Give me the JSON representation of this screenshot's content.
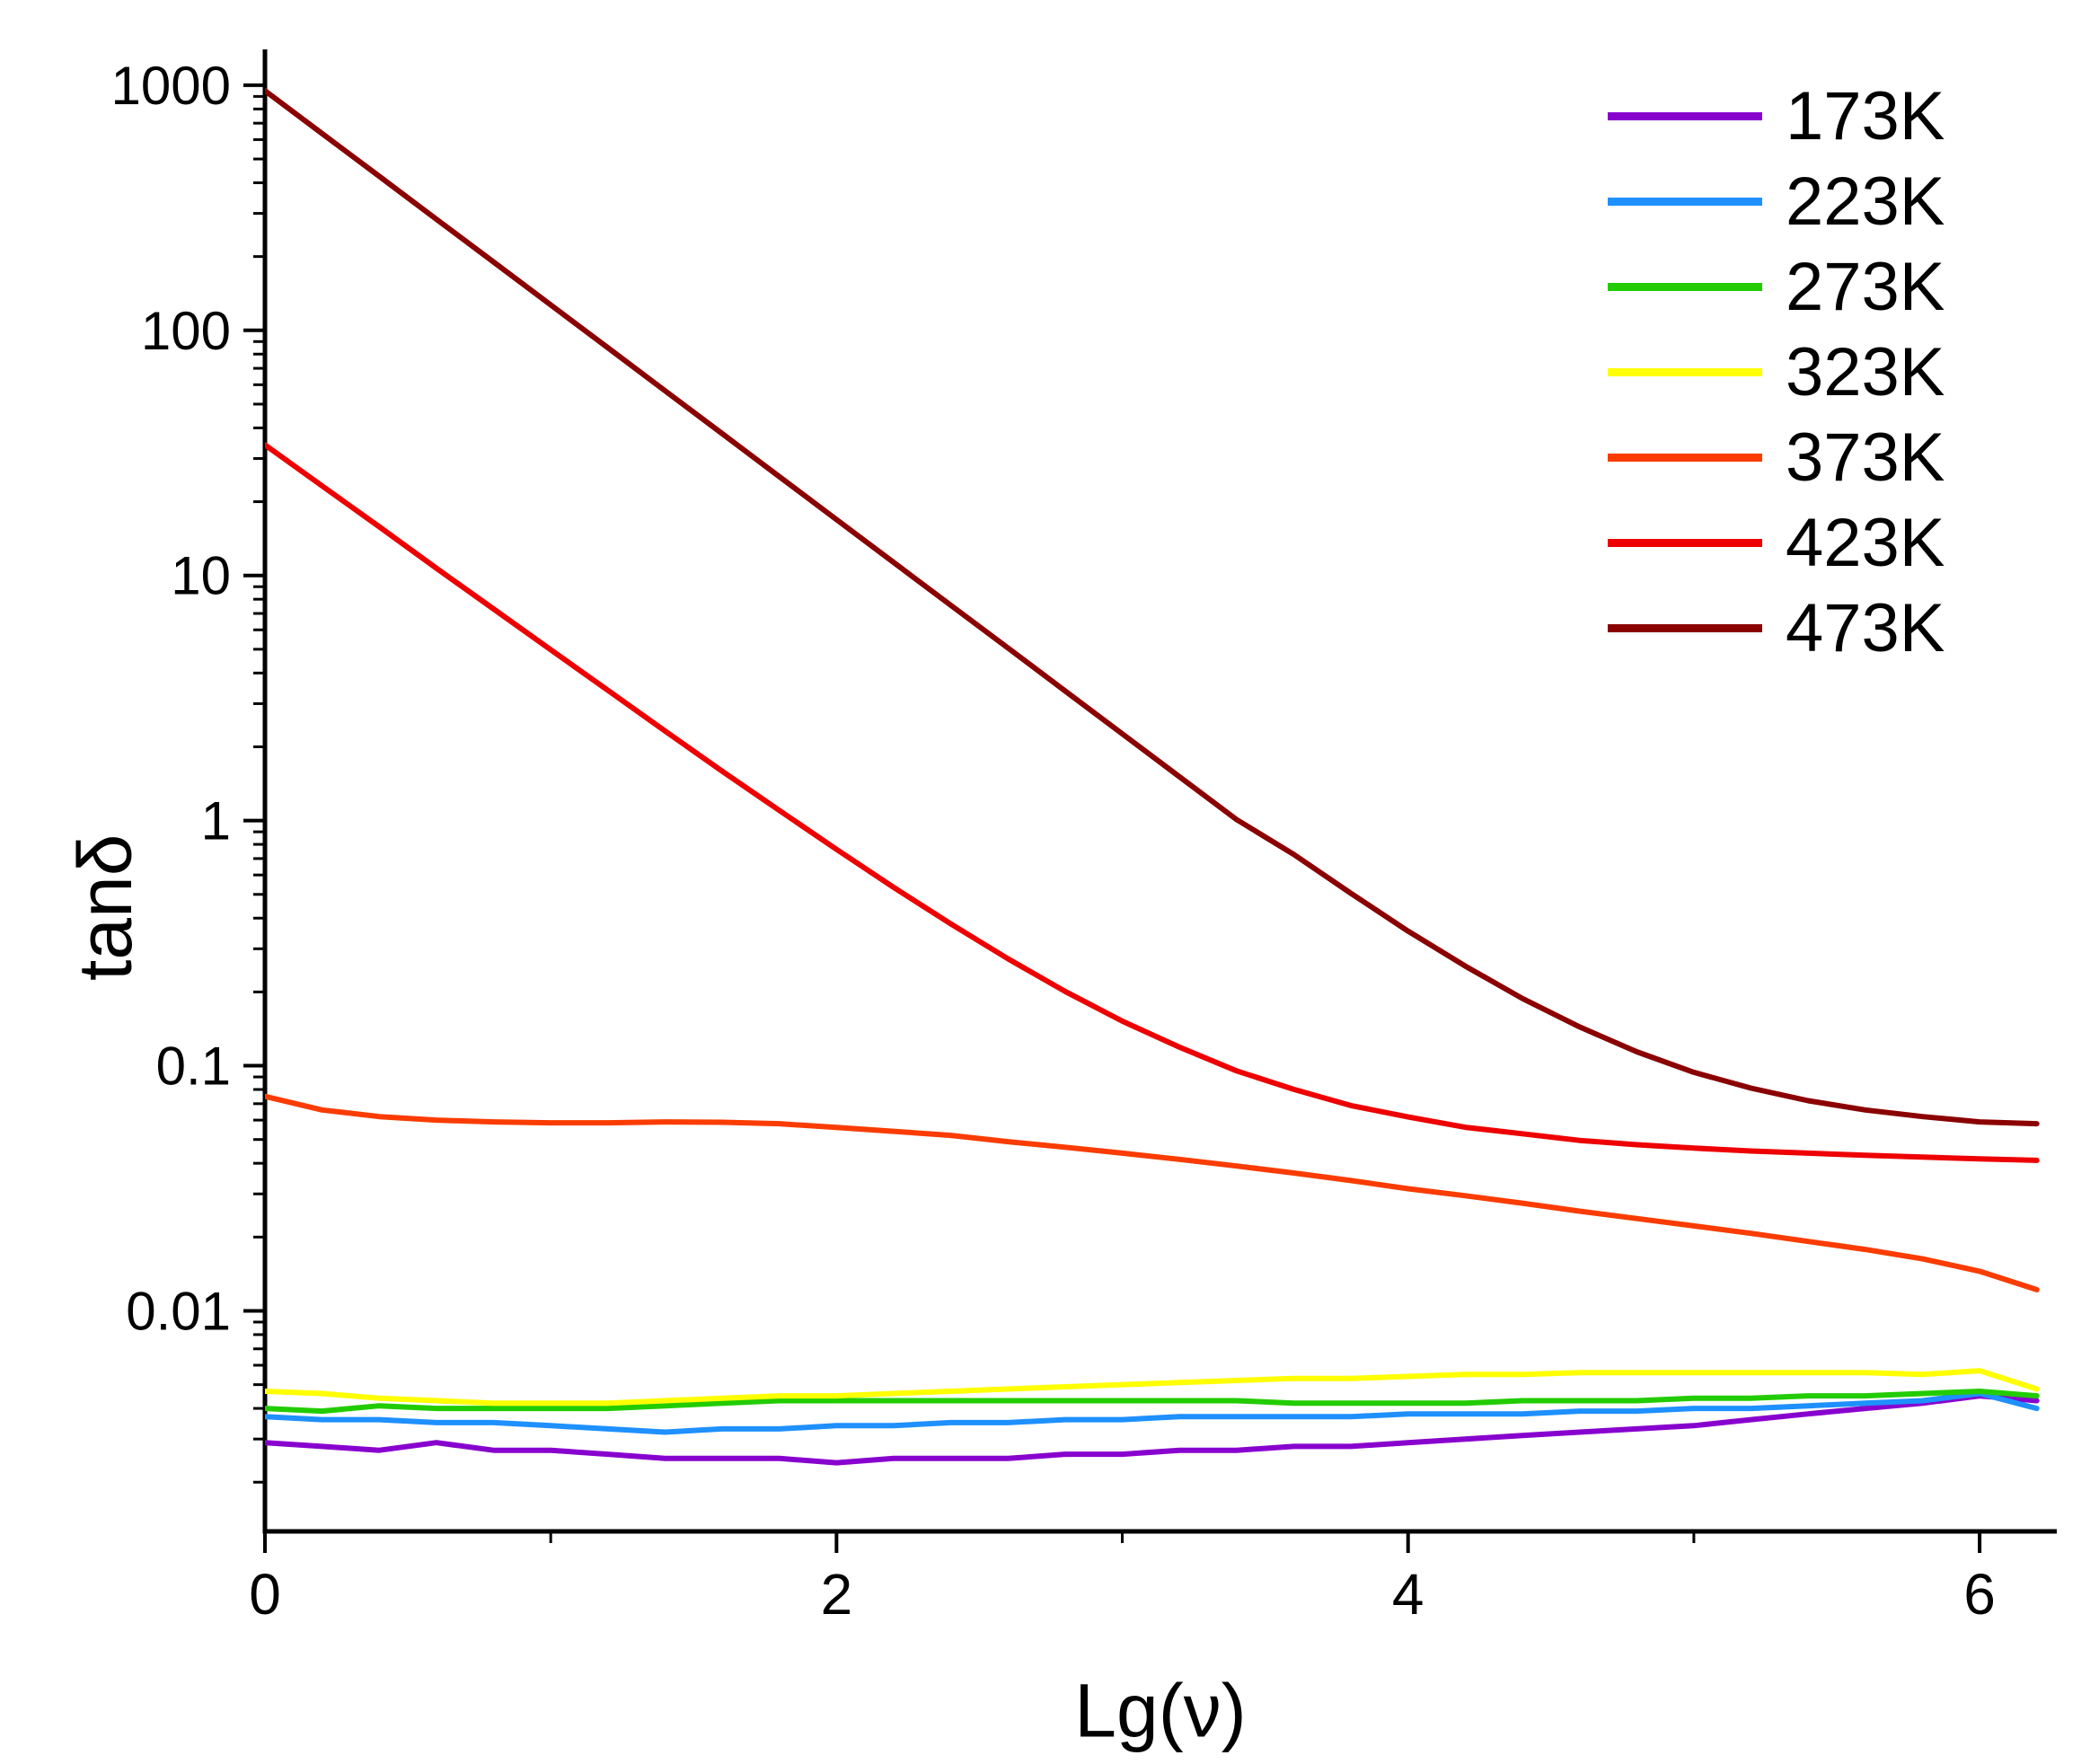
{
  "figure": {
    "background": "#ffffff"
  },
  "chart_data": {
    "type": "line",
    "title": "",
    "xlabel": "Lg(ν)",
    "ylabel": "tanδ",
    "grid": false,
    "legend_position": "top-right",
    "x_axis": {
      "scale": "linear",
      "min": 0,
      "max": 6.27,
      "major_ticks": [
        {
          "value": 0,
          "label": "0"
        },
        {
          "value": 2,
          "label": "2"
        },
        {
          "value": 4,
          "label": "4"
        },
        {
          "value": 6,
          "label": "6"
        }
      ],
      "minor_ticks": [
        1,
        3,
        5
      ]
    },
    "y_axis": {
      "scale": "log",
      "min": 0.00126,
      "max": 1400,
      "major_ticks": [
        {
          "value": 0.01,
          "label": "0.01"
        },
        {
          "value": 0.1,
          "label": "0.1"
        },
        {
          "value": 1,
          "label": "1"
        },
        {
          "value": 10,
          "label": "10"
        },
        {
          "value": 100,
          "label": "100"
        },
        {
          "value": 1000,
          "label": "1000"
        }
      ]
    },
    "x": [
      0,
      0.2,
      0.4,
      0.6,
      0.8,
      1.0,
      1.2,
      1.4,
      1.6,
      1.8,
      2.0,
      2.2,
      2.4,
      2.6,
      2.8,
      3.0,
      3.2,
      3.4,
      3.6,
      3.8,
      4.0,
      4.2,
      4.4,
      4.6,
      4.8,
      5.0,
      5.2,
      5.4,
      5.6,
      5.8,
      6.0,
      6.2
    ],
    "series": [
      {
        "name": "173K",
        "color": "#8802ce",
        "values": [
          0.0029,
          0.0028,
          0.0027,
          0.0029,
          0.0027,
          0.0027,
          0.0026,
          0.0025,
          0.0025,
          0.0025,
          0.0024,
          0.0025,
          0.0025,
          0.0025,
          0.0026,
          0.0026,
          0.0027,
          0.0027,
          0.0028,
          0.0028,
          0.0029,
          0.003,
          0.0031,
          0.0032,
          0.0033,
          0.0034,
          0.0036,
          0.0038,
          0.004,
          0.0042,
          0.0045,
          0.0043
        ]
      },
      {
        "name": "223K",
        "color": "#1e90ff",
        "values": [
          0.0037,
          0.0036,
          0.0036,
          0.0035,
          0.0035,
          0.0034,
          0.0033,
          0.0032,
          0.0033,
          0.0033,
          0.0034,
          0.0034,
          0.0035,
          0.0035,
          0.0036,
          0.0036,
          0.0037,
          0.0037,
          0.0037,
          0.0037,
          0.0038,
          0.0038,
          0.0038,
          0.0039,
          0.0039,
          0.004,
          0.004,
          0.0041,
          0.0042,
          0.0043,
          0.0046,
          0.004
        ]
      },
      {
        "name": "273K",
        "color": "#22cc00",
        "values": [
          0.004,
          0.0039,
          0.0041,
          0.004,
          0.004,
          0.004,
          0.004,
          0.0041,
          0.0042,
          0.0043,
          0.0043,
          0.0043,
          0.0043,
          0.0043,
          0.0043,
          0.0043,
          0.0043,
          0.0043,
          0.0042,
          0.0042,
          0.0042,
          0.0042,
          0.0043,
          0.0043,
          0.0043,
          0.0044,
          0.0044,
          0.0045,
          0.0045,
          0.0046,
          0.0047,
          0.0045
        ]
      },
      {
        "name": "323K",
        "color": "#ffff00",
        "values": [
          0.0047,
          0.0046,
          0.0044,
          0.0043,
          0.0042,
          0.0042,
          0.0042,
          0.0043,
          0.0044,
          0.0045,
          0.0045,
          0.0046,
          0.0047,
          0.0048,
          0.0049,
          0.005,
          0.0051,
          0.0052,
          0.0053,
          0.0053,
          0.0054,
          0.0055,
          0.0055,
          0.0056,
          0.0056,
          0.0056,
          0.0056,
          0.0056,
          0.0056,
          0.0055,
          0.0057,
          0.0048
        ]
      },
      {
        "name": "373K",
        "color": "#fa3c00",
        "values": [
          0.075,
          0.066,
          0.062,
          0.06,
          0.059,
          0.0585,
          0.0585,
          0.059,
          0.0588,
          0.058,
          0.056,
          0.054,
          0.052,
          0.049,
          0.0465,
          0.044,
          0.0415,
          0.039,
          0.0365,
          0.034,
          0.0315,
          0.0295,
          0.0275,
          0.0255,
          0.0238,
          0.0222,
          0.0207,
          0.0192,
          0.0178,
          0.0163,
          0.0145,
          0.0122
        ]
      },
      {
        "name": "423K",
        "color": "#ee0000",
        "values": [
          34.1,
          23.2,
          15.8,
          10.7,
          7.3,
          4.98,
          3.4,
          2.32,
          1.59,
          1.1,
          0.763,
          0.534,
          0.379,
          0.273,
          0.201,
          0.152,
          0.119,
          0.0953,
          0.0801,
          0.0688,
          0.0618,
          0.0561,
          0.0528,
          0.0496,
          0.0476,
          0.0461,
          0.0449,
          0.044,
          0.0431,
          0.0424,
          0.0417,
          0.0411
        ]
      },
      {
        "name": "473K",
        "color": "#8b0000",
        "values": [
          950,
          635,
          425,
          284,
          190,
          127,
          84.9,
          56.7,
          37.9,
          25.3,
          16.9,
          11.3,
          7.56,
          5.06,
          3.38,
          2.26,
          1.51,
          1.01,
          0.728,
          0.505,
          0.354,
          0.255,
          0.188,
          0.144,
          0.114,
          0.094,
          0.081,
          0.072,
          0.066,
          0.062,
          0.059,
          0.058
        ]
      }
    ]
  }
}
